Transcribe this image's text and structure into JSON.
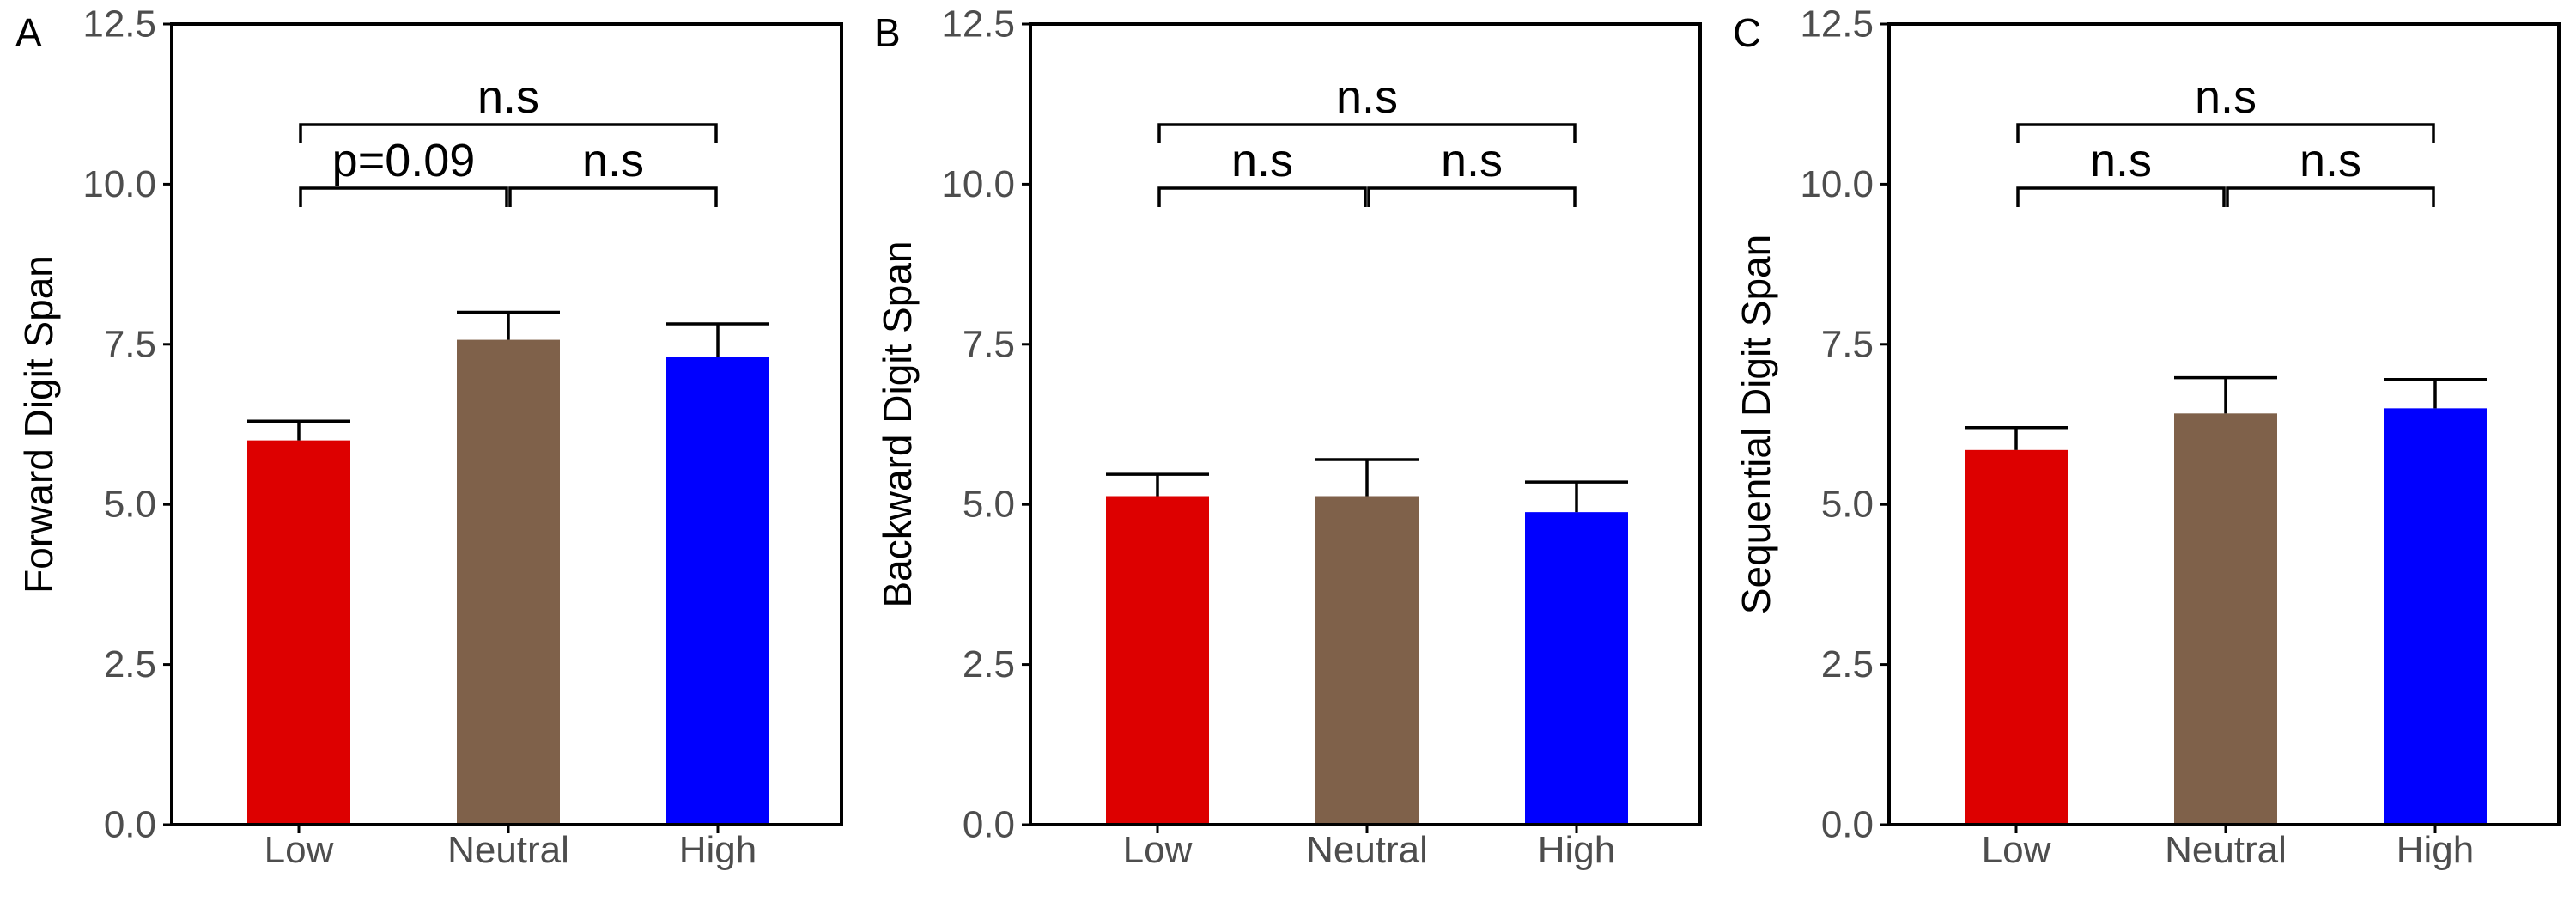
{
  "colors": {
    "low": "#dd0000",
    "neutral": "#7f614a",
    "high": "#0000ff",
    "axis": "#000000",
    "tick_label": "#4d4d4d"
  },
  "chart_data": [
    {
      "panel": "A",
      "type": "bar",
      "categories": [
        "Low",
        "Neutral",
        "High"
      ],
      "values": [
        6.0,
        7.57,
        7.3
      ],
      "error_upper": [
        6.3,
        8.0,
        7.82
      ],
      "ylabel": "Forward Digit Span",
      "xlabel": "",
      "ylim": [
        0,
        12.5
      ],
      "yticks": [
        "0.0",
        "2.5",
        "5.0",
        "7.5",
        "10.0",
        "12.5"
      ],
      "grid": false,
      "comparisons": [
        {
          "from": 0,
          "to": 1,
          "label": "p=0.09",
          "level": 1
        },
        {
          "from": 1,
          "to": 2,
          "label": "n.s",
          "level": 1
        },
        {
          "from": 0,
          "to": 2,
          "label": "n.s",
          "level": 2
        }
      ]
    },
    {
      "panel": "B",
      "type": "bar",
      "categories": [
        "Low",
        "Neutral",
        "High"
      ],
      "values": [
        5.13,
        5.13,
        4.88
      ],
      "error_upper": [
        5.47,
        5.7,
        5.35
      ],
      "ylabel": "Backward Digit Span",
      "xlabel": "",
      "ylim": [
        0,
        12.5
      ],
      "yticks": [
        "0.0",
        "2.5",
        "5.0",
        "7.5",
        "10.0",
        "12.5"
      ],
      "grid": false,
      "comparisons": [
        {
          "from": 0,
          "to": 1,
          "label": "n.s",
          "level": 1
        },
        {
          "from": 1,
          "to": 2,
          "label": "n.s",
          "level": 1
        },
        {
          "from": 0,
          "to": 2,
          "label": "n.s",
          "level": 2
        }
      ]
    },
    {
      "panel": "C",
      "type": "bar",
      "categories": [
        "Low",
        "Neutral",
        "High"
      ],
      "values": [
        5.85,
        6.42,
        6.5
      ],
      "error_upper": [
        6.2,
        6.98,
        6.95
      ],
      "ylabel": "Sequential Digit Span",
      "xlabel": "",
      "ylim": [
        0,
        12.5
      ],
      "yticks": [
        "0.0",
        "2.5",
        "5.0",
        "7.5",
        "10.0",
        "12.5"
      ],
      "grid": false,
      "comparisons": [
        {
          "from": 0,
          "to": 1,
          "label": "n.s",
          "level": 1
        },
        {
          "from": 1,
          "to": 2,
          "label": "n.s",
          "level": 1
        },
        {
          "from": 0,
          "to": 2,
          "label": "n.s",
          "level": 2
        }
      ]
    }
  ]
}
